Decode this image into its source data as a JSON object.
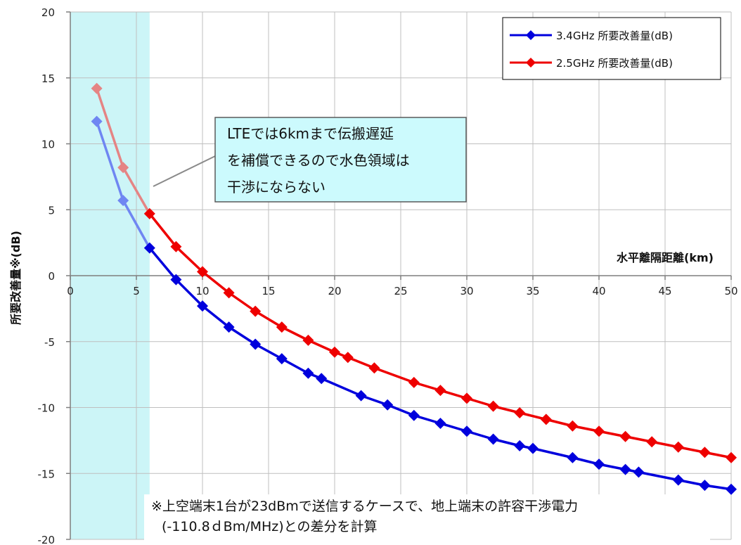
{
  "chart_data": {
    "type": "line",
    "xlabel": "水平離隔距離(km)",
    "ylabel": "所要改善量※(dB)",
    "xlim": [
      0,
      50
    ],
    "ylim": [
      -20,
      20
    ],
    "x_ticks": [
      "0",
      "5",
      "10",
      "15",
      "20",
      "25",
      "30",
      "35",
      "40",
      "45",
      "50"
    ],
    "y_ticks": [
      "20",
      "15",
      "10",
      "5",
      "0",
      "-5",
      "-10",
      "-15",
      "-20"
    ],
    "grid": true,
    "legend_position": "top-right",
    "shaded_region": {
      "x_range": [
        0,
        6
      ],
      "color": "#ccf5f7"
    },
    "series": [
      {
        "name": "3.4GHz 所要改善量(dB)",
        "color": "#0000dd",
        "faded_color": "#6f86f2",
        "x": [
          2,
          4,
          6,
          8,
          10,
          12,
          14,
          16,
          18,
          19,
          22,
          24,
          26,
          28,
          30,
          32,
          34,
          35,
          38,
          40,
          42,
          43,
          46,
          48,
          50
        ],
        "y": [
          11.7,
          5.7,
          2.1,
          -0.3,
          -2.3,
          -3.9,
          -5.2,
          -6.3,
          -7.4,
          -7.8,
          -9.1,
          -9.8,
          -10.6,
          -11.2,
          -11.8,
          -12.4,
          -12.9,
          -13.1,
          -13.8,
          -14.3,
          -14.7,
          -14.9,
          -15.5,
          -15.9,
          -16.2
        ]
      },
      {
        "name": "2.5GHz 所要改善量(dB)",
        "color": "#ee0000",
        "faded_color": "#e58484",
        "x": [
          2,
          4,
          6,
          8,
          10,
          12,
          14,
          16,
          18,
          20,
          21,
          23,
          26,
          28,
          30,
          32,
          34,
          36,
          38,
          40,
          42,
          44,
          46,
          48,
          50
        ],
        "y": [
          14.2,
          8.2,
          4.7,
          2.2,
          0.3,
          -1.3,
          -2.7,
          -3.9,
          -4.9,
          -5.8,
          -6.2,
          -7.0,
          -8.1,
          -8.7,
          -9.3,
          -9.9,
          -10.4,
          -10.9,
          -11.4,
          -11.8,
          -12.2,
          -12.6,
          -13.0,
          -13.4,
          -13.8
        ]
      }
    ],
    "annotations": {
      "callout_lines": [
        "LTEでは6kmまで伝搬遅延",
        "を補償できるので水色領域は",
        "干渉にならない"
      ],
      "note_lines": [
        "※上空端末1台が23dBmで送信するケースで、地上端末の許容干渉電力",
        "(-110.8ｄBm/MHz)との差分を計算"
      ]
    }
  }
}
